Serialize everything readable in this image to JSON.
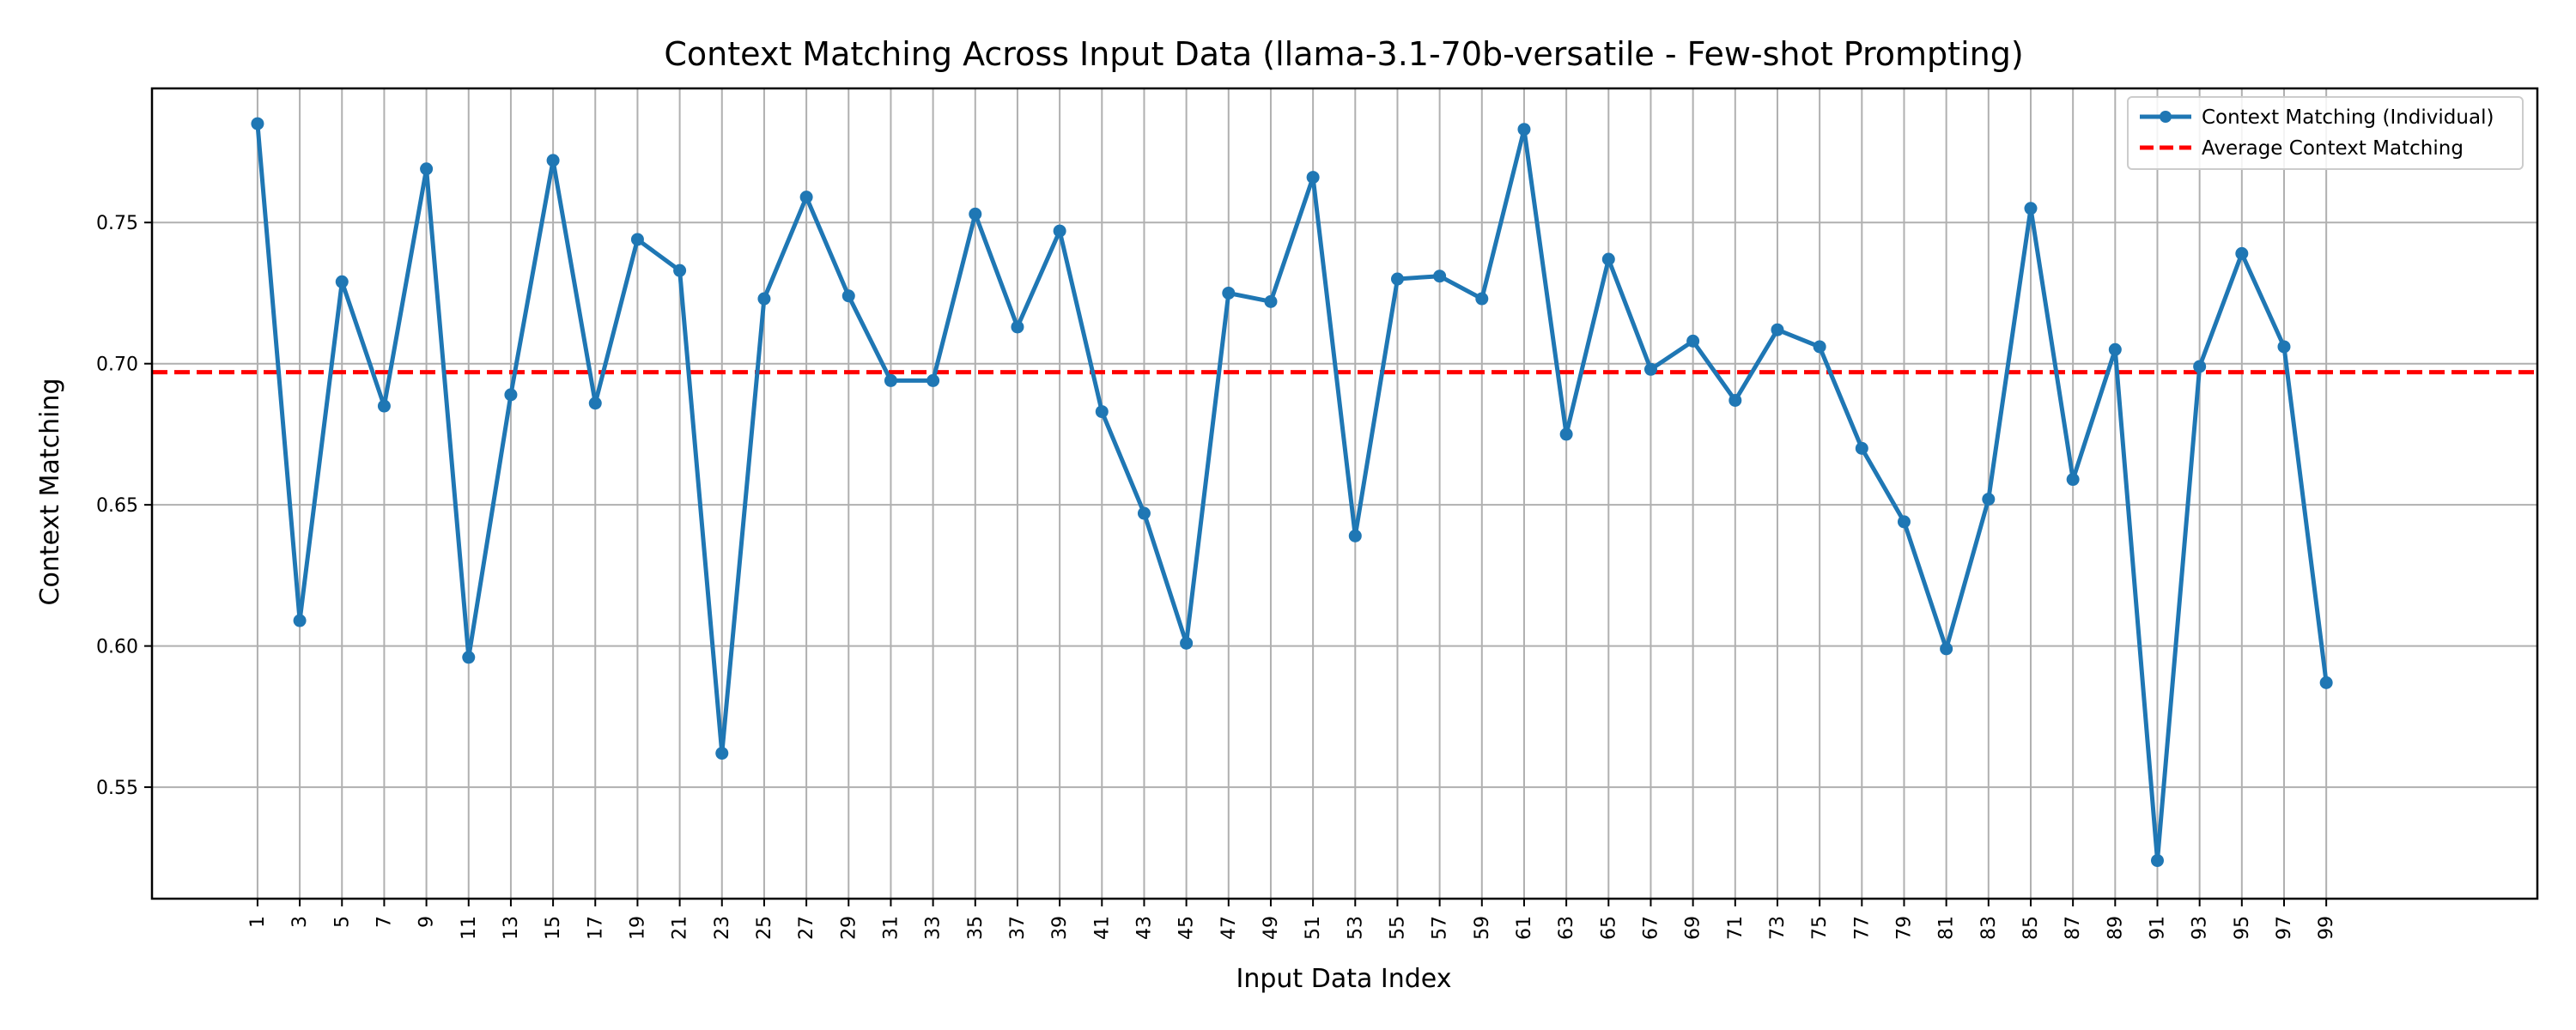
{
  "chart_data": {
    "type": "line",
    "title": "Context Matching Across Input Data (llama-3.1-70b-versatile - Few-shot Prompting)",
    "xlabel": "Input Data Index",
    "ylabel": "Context Matching",
    "xlim": [
      -4,
      109
    ],
    "ylim": [
      0.5105,
      0.7975
    ],
    "grid": true,
    "x_ticks": [
      1,
      3,
      5,
      7,
      9,
      11,
      13,
      15,
      17,
      19,
      21,
      23,
      25,
      27,
      29,
      31,
      33,
      35,
      37,
      39,
      41,
      43,
      45,
      47,
      49,
      51,
      53,
      55,
      57,
      59,
      61,
      63,
      65,
      67,
      69,
      71,
      73,
      75,
      77,
      79,
      81,
      83,
      85,
      87,
      89,
      91,
      93,
      95,
      97,
      99
    ],
    "y_ticks": [
      0.55,
      0.6,
      0.65,
      0.7,
      0.75
    ],
    "y_tick_labels": [
      "0.55",
      "0.60",
      "0.65",
      "0.70",
      "0.75"
    ],
    "legend_position": "top-right",
    "series": [
      {
        "name": "Context Matching (Individual)",
        "style": "line-with-markers",
        "color": "#1f77b4",
        "x": [
          1,
          3,
          5,
          7,
          9,
          11,
          13,
          15,
          17,
          19,
          21,
          23,
          25,
          27,
          29,
          31,
          33,
          35,
          37,
          39,
          41,
          43,
          45,
          47,
          49,
          51,
          53,
          55,
          57,
          59,
          61,
          63,
          65,
          67,
          69,
          71,
          73,
          75,
          77,
          79,
          81,
          83,
          85,
          87,
          89,
          91,
          93,
          95,
          97,
          99
        ],
        "values": [
          0.785,
          0.609,
          0.729,
          0.685,
          0.769,
          0.596,
          0.689,
          0.772,
          0.686,
          0.744,
          0.733,
          0.562,
          0.723,
          0.759,
          0.724,
          0.694,
          0.694,
          0.753,
          0.713,
          0.747,
          0.683,
          0.647,
          0.601,
          0.725,
          0.722,
          0.766,
          0.639,
          0.73,
          0.731,
          0.723,
          0.783,
          0.675,
          0.737,
          0.698,
          0.708,
          0.687,
          0.712,
          0.706,
          0.67,
          0.644,
          0.599,
          0.652,
          0.755,
          0.659,
          0.705,
          0.524,
          0.699,
          0.739,
          0.706,
          0.587
        ]
      },
      {
        "name": "Average Context Matching",
        "style": "dashed-line",
        "color": "#ff0000",
        "value": 0.697
      }
    ]
  }
}
